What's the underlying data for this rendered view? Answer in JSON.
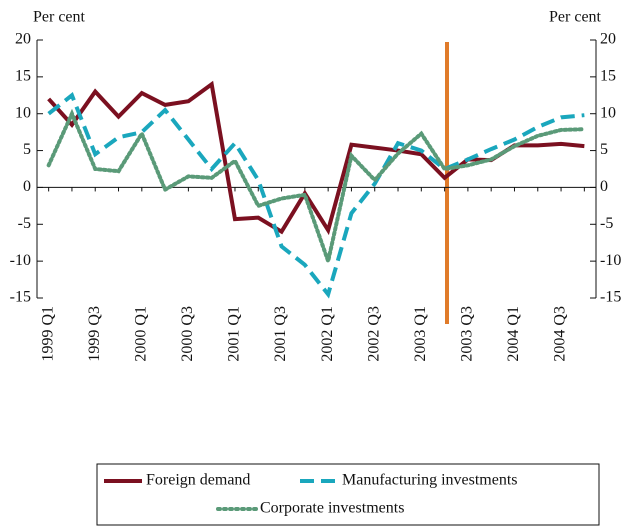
{
  "chart_data": {
    "type": "line",
    "y_label": "Per cent",
    "y2_label": "Per cent",
    "categories": [
      "1999 Q1",
      null,
      "1999 Q3",
      null,
      "2000 Q1",
      null,
      "2000 Q3",
      null,
      "2001 Q1",
      null,
      "2001 Q3",
      null,
      "2002 Q1",
      null,
      "2002 Q3",
      null,
      "2003 Q1",
      null,
      "2003 Q3",
      null,
      "2004 Q1",
      null,
      "2004 Q3",
      null
    ],
    "series": [
      {
        "name": "Foreign demand",
        "color": "#7b1020",
        "style": "solid",
        "values": [
          12,
          8.5,
          13,
          9.6,
          12.8,
          11.2,
          11.7,
          14,
          -4.3,
          -4.1,
          -6,
          -0.8,
          -5.8,
          5.8,
          5.4,
          5,
          4.5,
          1.3,
          3.8,
          3.7,
          5.7,
          5.7,
          5.9,
          5.6
        ]
      },
      {
        "name": "Manufacturing investments",
        "color": "#1aa7bd",
        "style": "dashed",
        "values": [
          10,
          12.5,
          4.5,
          6.8,
          7.5,
          10.5,
          6.5,
          2.5,
          6,
          1,
          -8,
          -10.5,
          -14.5,
          -3.5,
          0.5,
          6,
          5,
          2.5,
          3.8,
          5.2,
          6.5,
          8.2,
          9.5,
          9.8
        ]
      },
      {
        "name": "Corporate investments",
        "color": "#5a9a78",
        "style": "dotted",
        "values": [
          3,
          10,
          2.5,
          2.2,
          7.3,
          -0.3,
          1.5,
          1.3,
          3.6,
          -2.5,
          -1.5,
          -1,
          -10,
          4.3,
          1,
          4.6,
          7.3,
          2.5,
          3,
          3.8,
          5.6,
          7,
          7.8,
          7.9
        ]
      }
    ],
    "ylim": [
      -15,
      20
    ],
    "yticks": [
      -15,
      -10,
      -5,
      0,
      5,
      10,
      15,
      20
    ],
    "y2lim": [
      -15,
      20
    ],
    "y2ticks": [
      -15,
      -10,
      -5,
      0,
      5,
      10,
      15,
      20
    ]
  }
}
